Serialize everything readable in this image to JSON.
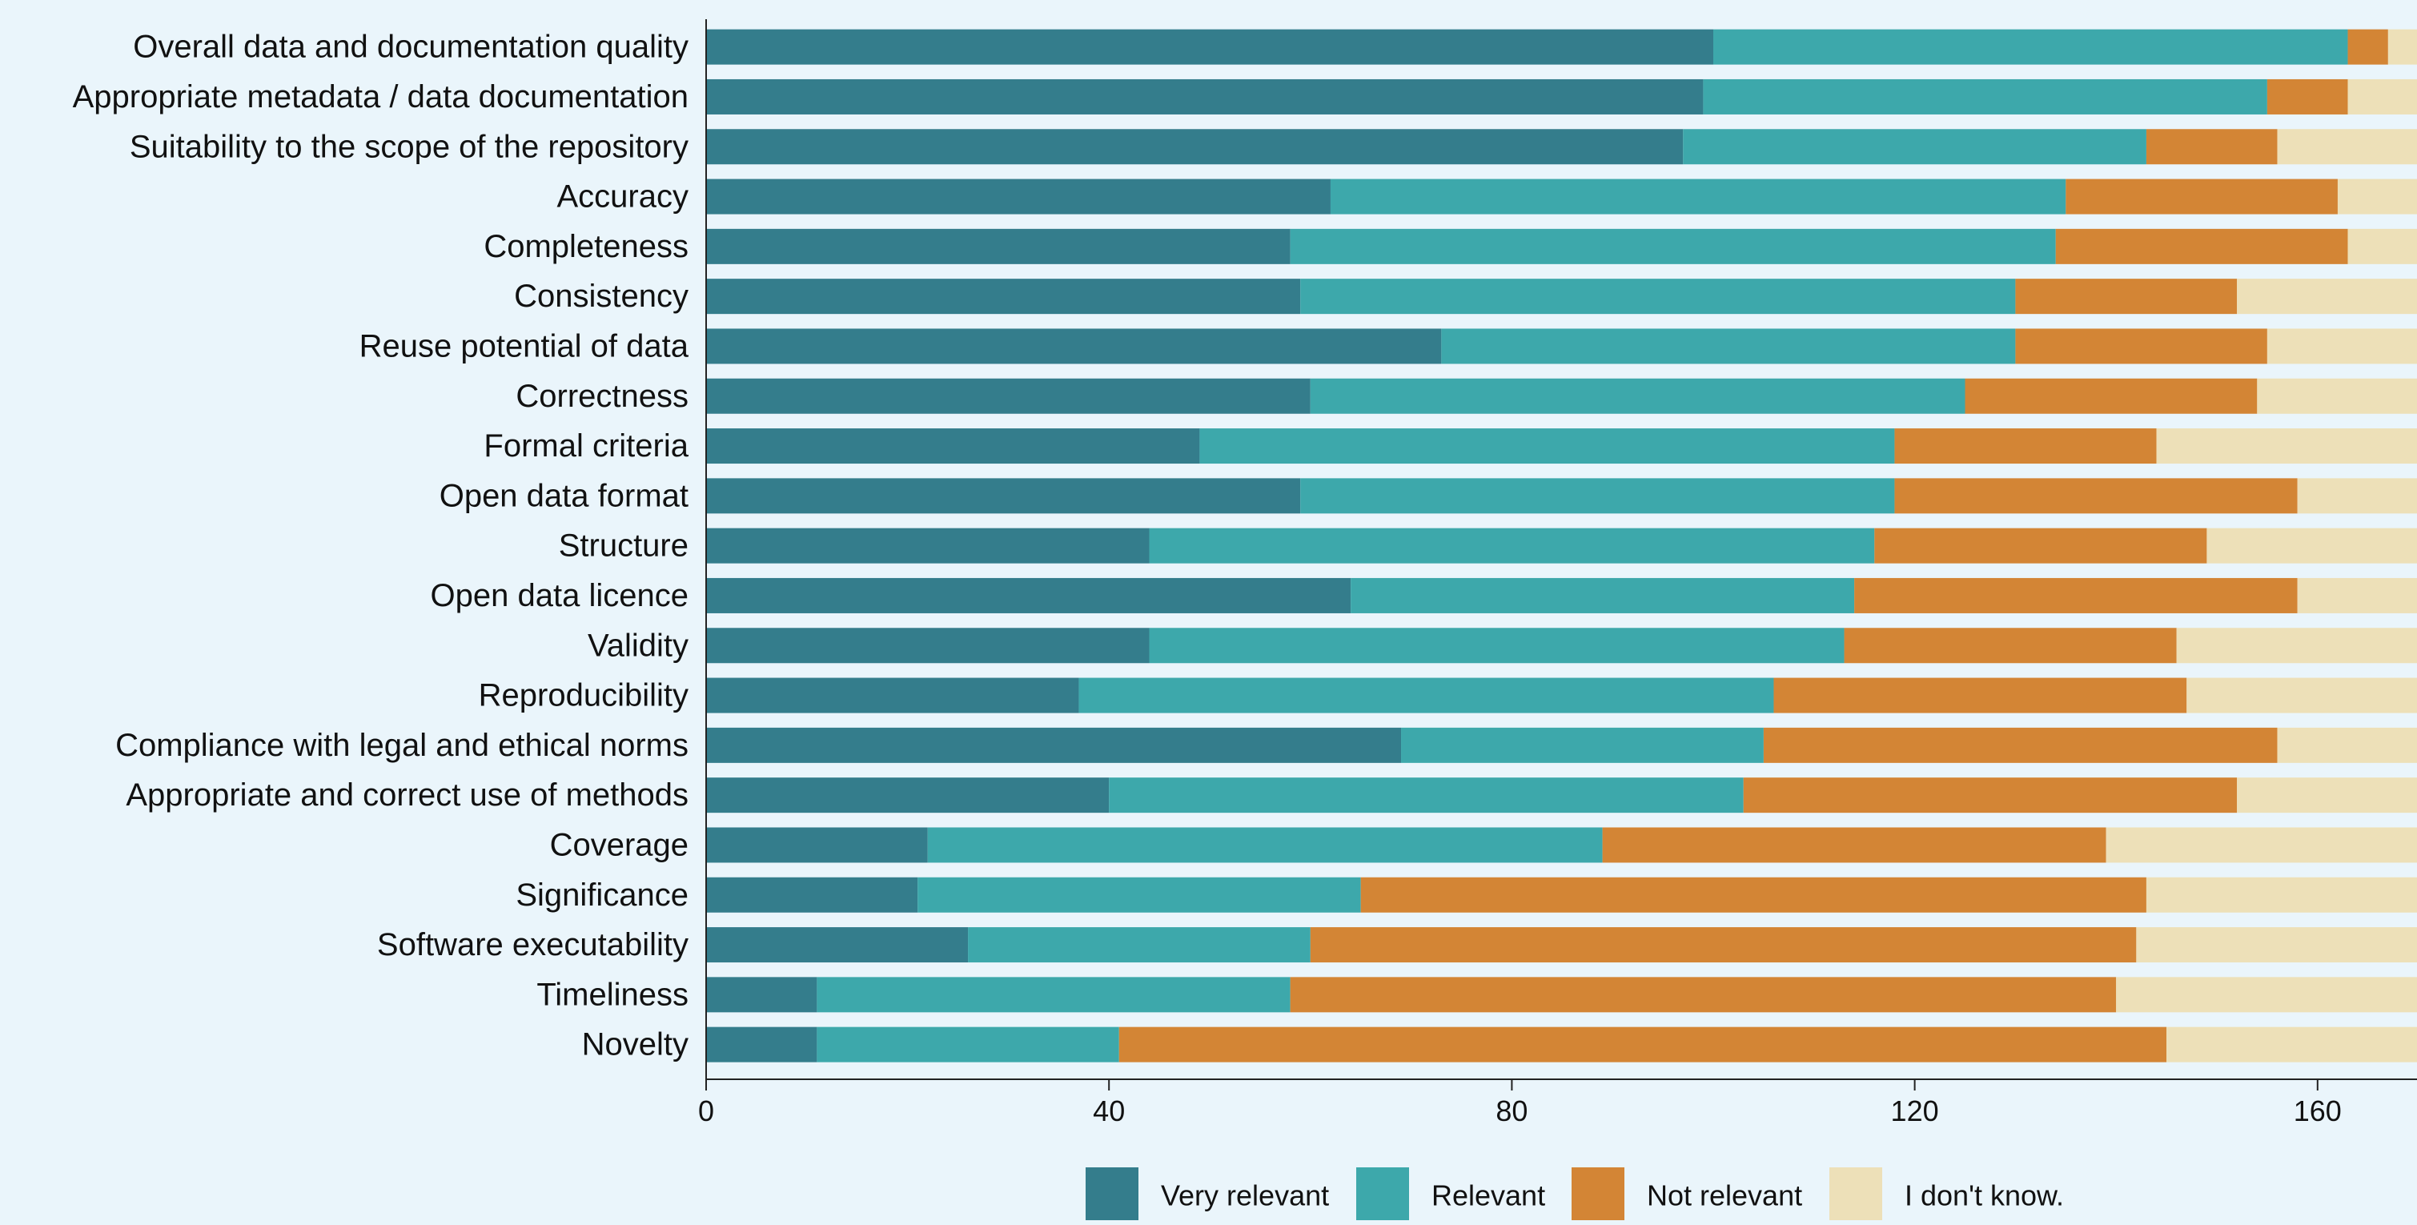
{
  "chart_data": {
    "type": "bar",
    "orientation": "horizontal",
    "stacked": true,
    "title": "",
    "xlabel": "",
    "ylabel": "",
    "xlim": [
      0,
      170
    ],
    "x_ticks": [
      "0",
      "40",
      "80",
      "120",
      "160"
    ],
    "x_tick_values": [
      0,
      40,
      80,
      120,
      160
    ],
    "grid": false,
    "legend_position": "bottom",
    "categories": [
      "Overall data and documentation quality",
      "Appropriate metadata / data documentation",
      "Suitability to the scope of the repository",
      "Accuracy",
      "Completeness",
      "Consistency",
      "Reuse potential of data",
      "Correctness",
      "Formal criteria",
      "Open data format",
      "Structure",
      "Open data licence",
      "Validity",
      "Reproducibility",
      "Compliance with legal and ethical norms",
      "Appropriate and correct use of methods",
      "Coverage",
      "Significance",
      "Software executability",
      "Timeliness",
      "Novelty"
    ],
    "series": [
      {
        "name": "Very relevant",
        "color": "#347d8c",
        "values": [
          100,
          99,
          97,
          62,
          58,
          59,
          73,
          60,
          49,
          59,
          44,
          64,
          44,
          37,
          69,
          40,
          22,
          21,
          26,
          11,
          11
        ]
      },
      {
        "name": "Relevant",
        "color": "#3da8ab",
        "values": [
          63,
          56,
          46,
          73,
          76,
          71,
          57,
          65,
          69,
          59,
          72,
          50,
          69,
          69,
          36,
          63,
          67,
          44,
          34,
          47,
          30
        ]
      },
      {
        "name": "Not relevant",
        "color": "#d38535",
        "values": [
          4,
          8,
          13,
          27,
          29,
          22,
          25,
          29,
          26,
          40,
          33,
          44,
          33,
          41,
          51,
          49,
          50,
          78,
          82,
          82,
          104
        ]
      },
      {
        "name": "I don't know.",
        "color": "#ede0b8",
        "values": [
          3,
          7,
          14,
          8,
          7,
          18,
          15,
          16,
          26,
          12,
          21,
          12,
          24,
          23,
          14,
          18,
          31,
          27,
          28,
          30,
          25
        ]
      }
    ]
  }
}
